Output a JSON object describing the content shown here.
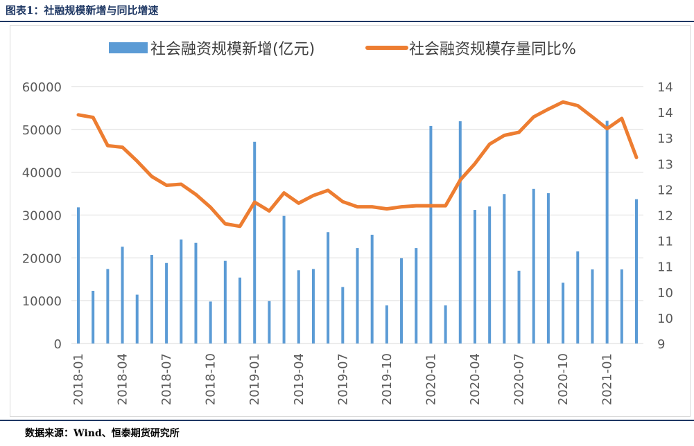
{
  "header": {
    "title": "图表1：社融规模新增与同比增速"
  },
  "footer": {
    "source": "数据来源：Wind、恒泰期货研究所"
  },
  "chart_data": {
    "type": "bar+line",
    "legend": [
      "社会融资规模新增(亿元)",
      "社会融资规模存量同比%"
    ],
    "colors": {
      "bars": "#5b9bd5",
      "line": "#ed7d31",
      "grid": "#d9d9d9",
      "rule": "#1f3864"
    },
    "x": [
      "2018-01",
      "2018-02",
      "2018-03",
      "2018-04",
      "2018-05",
      "2018-06",
      "2018-07",
      "2018-08",
      "2018-09",
      "2018-10",
      "2018-11",
      "2018-12",
      "2019-01",
      "2019-02",
      "2019-03",
      "2019-04",
      "2019-05",
      "2019-06",
      "2019-07",
      "2019-08",
      "2019-09",
      "2019-10",
      "2019-11",
      "2019-12",
      "2020-01",
      "2020-02",
      "2020-03",
      "2020-04",
      "2020-05",
      "2020-06",
      "2020-07",
      "2020-08",
      "2020-09",
      "2020-10",
      "2020-11",
      "2020-12",
      "2021-01",
      "2021-02",
      "2021-03"
    ],
    "x_tick_labels": [
      "2018-01",
      "2018-04",
      "2018-07",
      "2018-10",
      "2019-01",
      "2019-04",
      "2019-07",
      "2019-10",
      "2020-01",
      "2020-04",
      "2020-07",
      "2020-10",
      "2021-01"
    ],
    "y_left": {
      "ticks": [
        "0",
        "10000",
        "20000",
        "30000",
        "40000",
        "50000",
        "60000"
      ],
      "range": [
        0,
        60000
      ]
    },
    "y_right": {
      "ticks": [
        "9",
        "10",
        "10",
        "11",
        "11",
        "12",
        "12",
        "13",
        "13",
        "14",
        "14"
      ],
      "range": [
        9,
        14
      ]
    },
    "series": [
      {
        "name": "社会融资规模新增(亿元)",
        "type": "bar",
        "axis": "left",
        "values": [
          31800,
          12300,
          17400,
          22600,
          11400,
          20700,
          18800,
          24300,
          23500,
          9800,
          19300,
          15400,
          47100,
          9900,
          29800,
          17100,
          17400,
          26000,
          13200,
          22300,
          25400,
          8900,
          19900,
          22300,
          50800,
          8900,
          51900,
          31200,
          32000,
          34900,
          17000,
          36100,
          35100,
          14200,
          21500,
          17300,
          52000,
          17300,
          33700
        ]
      },
      {
        "name": "社会融资规模存量同比%",
        "type": "line",
        "axis": "right",
        "values": [
          13.45,
          13.4,
          12.85,
          12.82,
          12.55,
          12.25,
          12.08,
          12.1,
          11.9,
          11.65,
          11.33,
          11.28,
          11.75,
          11.58,
          11.93,
          11.73,
          11.88,
          11.98,
          11.76,
          11.66,
          11.66,
          11.62,
          11.66,
          11.68,
          11.68,
          11.68,
          12.18,
          12.5,
          12.88,
          13.05,
          13.11,
          13.41,
          13.56,
          13.7,
          13.63,
          13.41,
          13.18,
          13.38,
          12.62
        ]
      }
    ]
  }
}
